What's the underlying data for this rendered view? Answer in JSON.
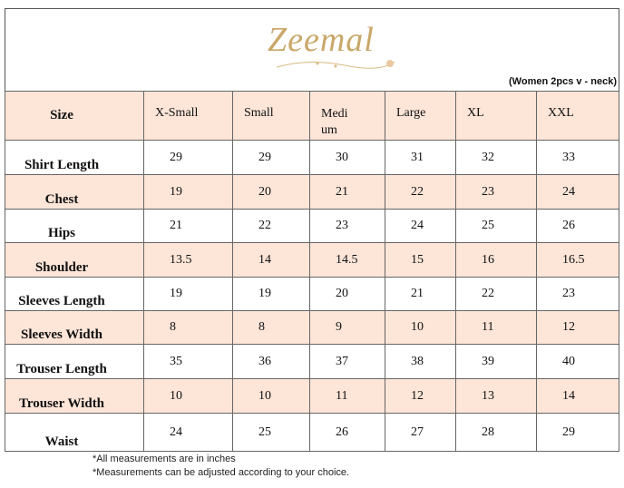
{
  "header": {
    "brand": "Zeemal",
    "subtitle": "(Women 2pcs v - neck)"
  },
  "table": {
    "columns": [
      "Size",
      "X-Small",
      "Small",
      "Medium",
      "Large",
      "XL",
      "XXL"
    ],
    "rows": [
      [
        "Shirt Length",
        29,
        29,
        30,
        31,
        32,
        33
      ],
      [
        "Chest",
        19,
        20,
        21,
        22,
        23,
        24
      ],
      [
        "Hips",
        21,
        22,
        23,
        24,
        25,
        26
      ],
      [
        "Shoulder",
        13.5,
        14,
        14.5,
        15,
        16,
        16.5
      ],
      [
        "Sleeves Length",
        19,
        19,
        20,
        21,
        22,
        23
      ],
      [
        "Sleeves Width",
        8,
        8,
        9,
        10,
        11,
        12
      ],
      [
        "Trouser Length",
        35,
        36,
        37,
        38,
        39,
        40
      ],
      [
        "Trouser Width",
        10,
        10,
        11,
        12,
        13,
        14
      ],
      [
        "Waist",
        24,
        25,
        26,
        27,
        28,
        29
      ]
    ]
  },
  "notes": [
    "*All measurements are in inches",
    "*Measurements can be adjusted according to your choice."
  ]
}
